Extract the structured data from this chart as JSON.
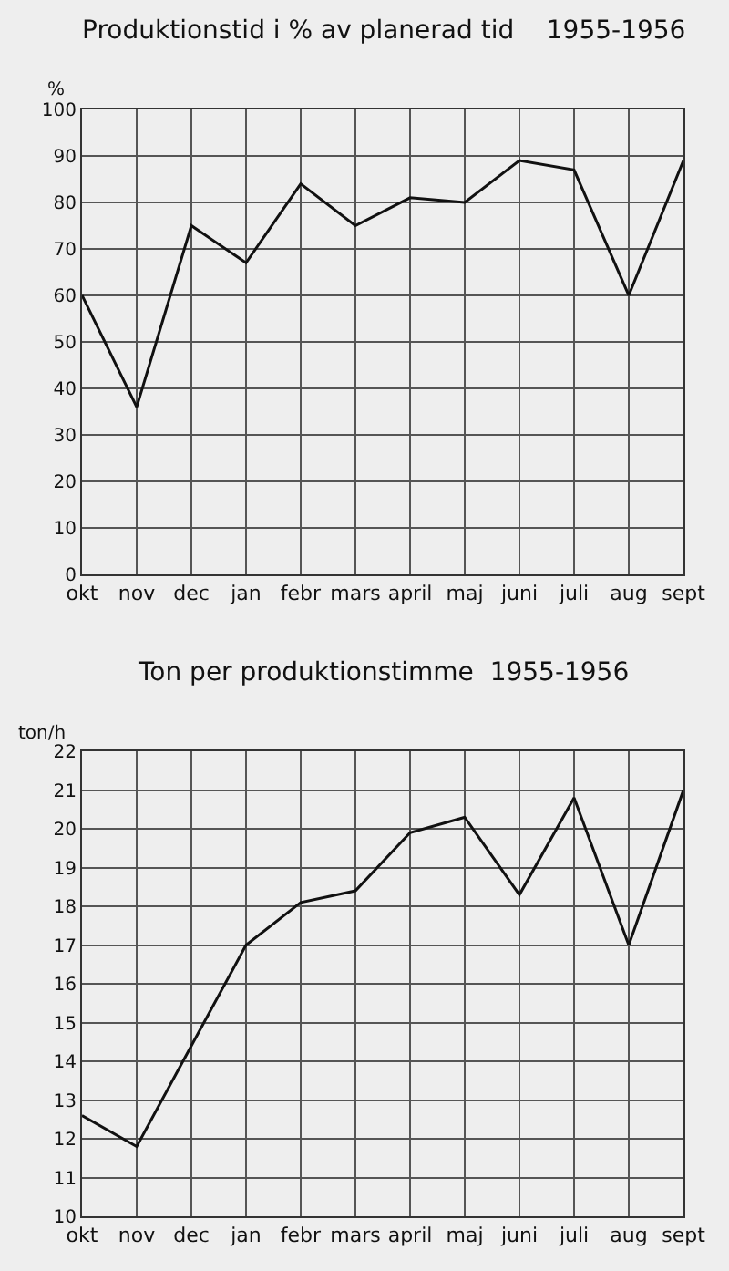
{
  "chart_data": [
    {
      "type": "line",
      "title": "Produktionstid i % av planerad tid    1955-1956",
      "ylabel": "%",
      "categories": [
        "okt",
        "nov",
        "dec",
        "jan",
        "febr",
        "mars",
        "april",
        "maj",
        "juni",
        "juli",
        "aug",
        "sept"
      ],
      "series": [
        {
          "color": "#111111",
          "values": [
            60,
            36,
            75,
            67,
            84,
            75,
            81,
            80,
            89,
            87,
            60,
            89
          ]
        }
      ],
      "ylim": [
        0,
        100
      ],
      "yticks": [
        0,
        10,
        20,
        30,
        40,
        50,
        60,
        70,
        80,
        90,
        100
      ],
      "grid": true,
      "marker": "none",
      "line_style": "solid"
    },
    {
      "type": "line",
      "title": "Ton per produktionstimme  1955-1956",
      "ylabel": "ton/h",
      "categories": [
        "okt",
        "nov",
        "dec",
        "jan",
        "febr",
        "mars",
        "april",
        "maj",
        "juni",
        "juli",
        "aug",
        "sept"
      ],
      "series": [
        {
          "color": "#111111",
          "values": [
            12.6,
            11.8,
            14.4,
            17.0,
            18.1,
            18.4,
            19.9,
            20.3,
            18.3,
            20.8,
            17.0,
            21.0
          ]
        }
      ],
      "ylim": [
        10,
        22
      ],
      "yticks": [
        10,
        11,
        12,
        13,
        14,
        15,
        16,
        17,
        18,
        19,
        20,
        21,
        22
      ],
      "grid": true,
      "marker": "none",
      "line_style": "solid"
    }
  ]
}
